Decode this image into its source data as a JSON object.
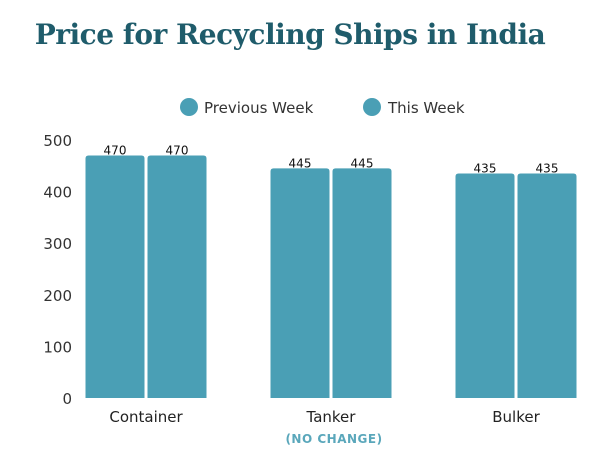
{
  "colors": {
    "title": "#1f5c6b",
    "bar": "#4a9fb5",
    "note": "#5aa7bb"
  },
  "chart_data": {
    "type": "bar",
    "title": "Price for Recycling Ships in India",
    "categories": [
      "Container",
      "Tanker",
      "Bulker"
    ],
    "series": [
      {
        "name": "Previous Week",
        "values": [
          470,
          445,
          435
        ]
      },
      {
        "name": "This Week",
        "values": [
          470,
          445,
          435
        ]
      }
    ],
    "ylim": [
      0,
      500
    ],
    "yticks": [
      0,
      100,
      200,
      300,
      400,
      500
    ],
    "legend_position": "top",
    "grid": false,
    "note": "(NO CHANGE)"
  }
}
